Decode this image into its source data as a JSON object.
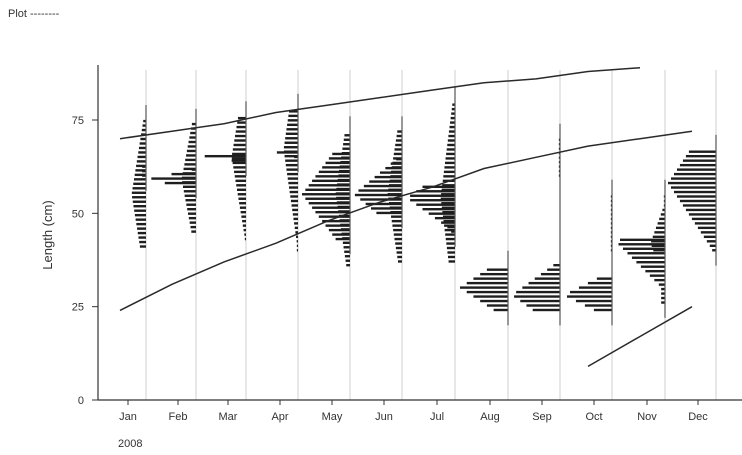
{
  "header": {
    "title": "Plot --------"
  },
  "chart_data": {
    "type": "histogram-growth",
    "ylabel": "Length (cm)",
    "yticks": [
      0,
      25,
      50,
      75
    ],
    "ylim": [
      0,
      90
    ],
    "year_label": "2008",
    "months": [
      "Jan",
      "Feb",
      "Mar",
      "Apr",
      "May",
      "Jun",
      "Jul",
      "Aug",
      "Sep",
      "Oct",
      "Nov",
      "Dec"
    ],
    "length_frequency": [
      {
        "month": "Jan",
        "modes": [
          [
            60,
            63
          ],
          [
            41,
            75
          ]
        ],
        "peak": 55
      },
      {
        "month": "Feb",
        "modes": [
          [
            58,
            62
          ],
          [
            45,
            74
          ]
        ],
        "peak": 59
      },
      {
        "month": "Mar",
        "modes": [
          [
            64,
            66
          ],
          [
            43,
            76
          ]
        ],
        "peak": 65
      },
      {
        "month": "Apr",
        "modes": [
          [
            65,
            67
          ],
          [
            40,
            78
          ]
        ],
        "peak": 67
      },
      {
        "month": "May",
        "modes": [
          [
            43,
            67
          ],
          [
            36,
            72
          ]
        ],
        "peak": 55
      },
      {
        "month": "Jun",
        "modes": [
          [
            50,
            65
          ],
          [
            37,
            72
          ]
        ],
        "peak": 55
      },
      {
        "month": "Jul",
        "modes": [
          [
            45,
            58
          ],
          [
            37,
            80
          ]
        ],
        "peak": 54
      },
      {
        "month": "Aug",
        "modes": [
          [
            24,
            36
          ]
        ],
        "peak": 30
      },
      {
        "month": "Sep",
        "modes": [
          [
            24,
            37
          ],
          [
            60,
            70
          ]
        ],
        "peak": 28
      },
      {
        "month": "Oct",
        "modes": [
          [
            24,
            33
          ],
          [
            40,
            55
          ]
        ],
        "peak": 28
      },
      {
        "month": "Nov",
        "modes": [
          [
            26,
            44
          ],
          [
            40,
            55
          ]
        ],
        "peak": 42
      },
      {
        "month": "Dec",
        "modes": [
          [
            40,
            67
          ]
        ],
        "peak": 58
      }
    ],
    "growth_curves": [
      {
        "points": [
          [
            0.0,
            70
          ],
          [
            1,
            72
          ],
          [
            2,
            74
          ],
          [
            3,
            77
          ],
          [
            4,
            79
          ],
          [
            5,
            81
          ],
          [
            6,
            83
          ],
          [
            7,
            85
          ],
          [
            8,
            86
          ],
          [
            9,
            88
          ],
          [
            10,
            89
          ]
        ]
      },
      {
        "points": [
          [
            0.0,
            24
          ],
          [
            1,
            31
          ],
          [
            2,
            37
          ],
          [
            3,
            42
          ],
          [
            4,
            48
          ],
          [
            5,
            53
          ],
          [
            6,
            57
          ],
          [
            7,
            62
          ],
          [
            8,
            65
          ],
          [
            9,
            68
          ],
          [
            10,
            70
          ],
          [
            11,
            72
          ]
        ]
      },
      {
        "points": [
          [
            9.0,
            9
          ],
          [
            10,
            17
          ],
          [
            11,
            25
          ]
        ]
      }
    ]
  }
}
